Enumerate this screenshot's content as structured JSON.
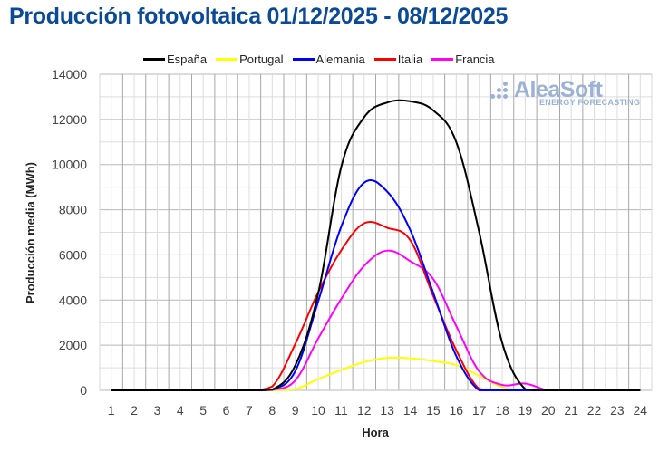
{
  "title": "Producción fotovoltaica 01/12/2025 - 08/12/2025",
  "watermark": {
    "brand": "AleaSoft",
    "tagline": "ENERGY FORECASTING"
  },
  "chart_data": {
    "type": "line",
    "title": "Producción fotovoltaica 01/12/2025 - 08/12/2025",
    "xlabel": "Hora",
    "ylabel": "Producción media (MWh)",
    "ylim": [
      0,
      14000
    ],
    "yticks": [
      0,
      2000,
      4000,
      6000,
      8000,
      10000,
      12000,
      14000
    ],
    "grid": true,
    "legend_position": "top",
    "categories": [
      "1",
      "2",
      "3",
      "4",
      "5",
      "6",
      "7",
      "8",
      "9",
      "10",
      "11",
      "12",
      "13",
      "14",
      "15",
      "16",
      "17",
      "18",
      "19",
      "20",
      "21",
      "22",
      "23",
      "24"
    ],
    "series": [
      {
        "name": "España",
        "color": "#000000",
        "values": [
          0,
          0,
          0,
          0,
          0,
          0,
          0,
          30,
          1100,
          4300,
          9900,
          12100,
          12750,
          12800,
          12400,
          11000,
          7000,
          2100,
          50,
          0,
          0,
          0,
          0,
          0
        ]
      },
      {
        "name": "Portugal",
        "color": "#ffff00",
        "values": [
          0,
          0,
          0,
          0,
          0,
          0,
          0,
          0,
          50,
          500,
          900,
          1250,
          1440,
          1420,
          1300,
          1120,
          650,
          140,
          20,
          0,
          0,
          0,
          0,
          0
        ]
      },
      {
        "name": "Alemania",
        "color": "#0000ff",
        "values": [
          0,
          0,
          0,
          0,
          0,
          0,
          0,
          30,
          850,
          3950,
          7250,
          9200,
          8800,
          7100,
          4320,
          1520,
          0,
          0,
          0,
          0,
          0,
          0,
          0,
          0
        ]
      },
      {
        "name": "Italia",
        "color": "#ff0000",
        "values": [
          0,
          0,
          0,
          0,
          0,
          0,
          0,
          170,
          2050,
          4350,
          6200,
          7400,
          7200,
          6650,
          4180,
          1780,
          60,
          0,
          0,
          0,
          0,
          0,
          0,
          0
        ]
      },
      {
        "name": "Francia",
        "color": "#ff00ff",
        "values": [
          0,
          0,
          0,
          0,
          0,
          0,
          0,
          20,
          440,
          2300,
          4050,
          5520,
          6190,
          5720,
          4930,
          2850,
          840,
          240,
          300,
          0,
          0,
          0,
          0,
          0
        ]
      }
    ]
  }
}
